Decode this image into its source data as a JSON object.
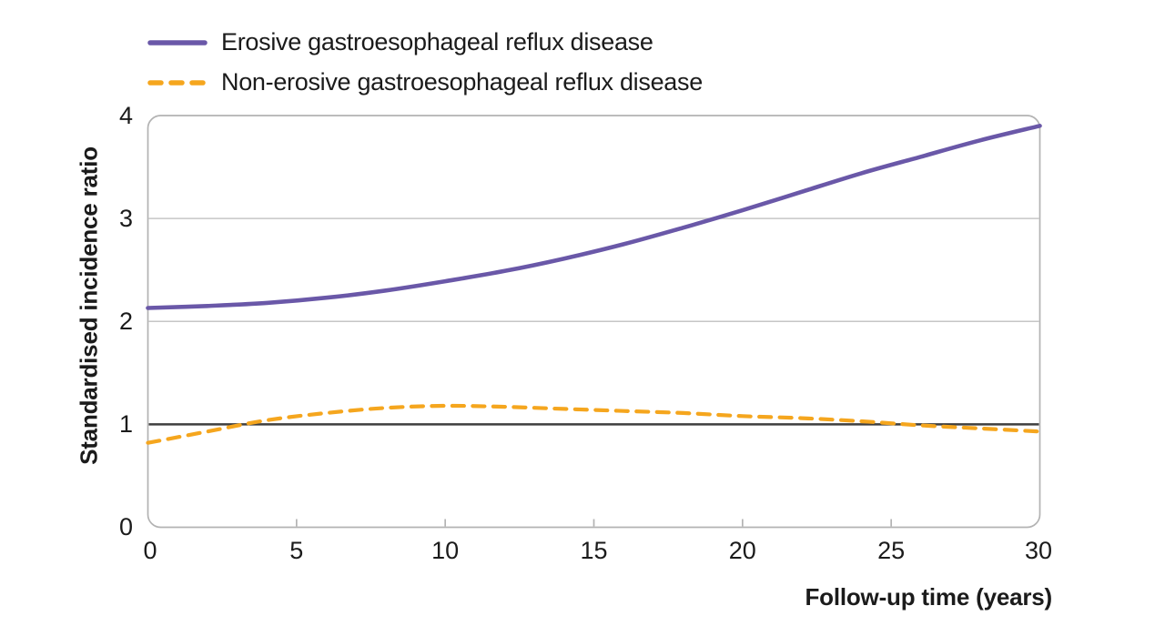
{
  "legend": {
    "items": [
      {
        "label": "Erosive gastroesophageal reflux disease",
        "color": "#6A58A8",
        "line_style": "solid"
      },
      {
        "label": "Non-erosive gastroesophageal reflux disease",
        "color": "#F5A61E",
        "line_style": "dashed"
      }
    ]
  },
  "chart_data": {
    "type": "line",
    "title": "",
    "xlabel": "Follow-up time (years)",
    "ylabel": "Standardised incidence ratio",
    "xlim": [
      0,
      30
    ],
    "ylim": [
      0,
      4
    ],
    "x_ticks": [
      0,
      5,
      10,
      15,
      20,
      25,
      30
    ],
    "y_ticks": [
      0,
      1,
      2,
      3,
      4
    ],
    "grid_y": [
      2,
      3
    ],
    "reference_line_y": 1,
    "legend_position": "top-left",
    "grid": "horizontal",
    "x": [
      0,
      2,
      4,
      6,
      8,
      10,
      12,
      14,
      16,
      18,
      20,
      22,
      24,
      26,
      28,
      30
    ],
    "series": [
      {
        "name": "Erosive gastroesophageal reflux disease",
        "color": "#6A58A8",
        "style": "solid",
        "values": [
          2.13,
          2.15,
          2.18,
          2.23,
          2.3,
          2.39,
          2.49,
          2.61,
          2.75,
          2.91,
          3.08,
          3.26,
          3.44,
          3.6,
          3.76,
          3.9
        ]
      },
      {
        "name": "Non-erosive gastroesophageal reflux disease",
        "color": "#F5A61E",
        "style": "dashed",
        "values": [
          0.82,
          0.93,
          1.04,
          1.11,
          1.16,
          1.18,
          1.17,
          1.15,
          1.13,
          1.11,
          1.08,
          1.06,
          1.03,
          0.99,
          0.96,
          0.93
        ]
      }
    ]
  },
  "colors": {
    "background": "#ffffff",
    "frame": "#b3b3b3",
    "gridline": "#c6c6c6",
    "reference_line": "#3f3f3f",
    "text": "#1b1b1b"
  }
}
